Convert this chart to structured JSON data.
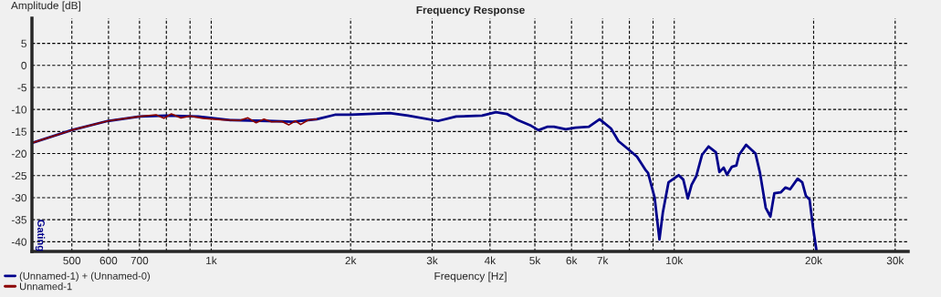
{
  "chart_data": {
    "type": "line",
    "title": "Frequency Response",
    "xlabel": "Frequency [Hz]",
    "ylabel": "Amplitude [dB]",
    "log": "x",
    "xlim": [
      410,
      32000
    ],
    "ylim": [
      -42.2,
      10.7
    ],
    "xticks": [
      500,
      600,
      700,
      {
        "value": 800,
        "label": null
      },
      {
        "value": 900,
        "label": null
      },
      {
        "value": 1000,
        "label": "1k"
      },
      {
        "value": 2000,
        "label": "2k"
      },
      {
        "value": 3000,
        "label": "3k"
      },
      {
        "value": 4000,
        "label": "4k"
      },
      {
        "value": 5000,
        "label": "5k"
      },
      {
        "value": 6000,
        "label": "6k"
      },
      {
        "value": 7000,
        "label": "7k"
      },
      {
        "value": 8000,
        "label": null
      },
      {
        "value": 9000,
        "label": null
      },
      {
        "value": 10000,
        "label": "10k"
      },
      {
        "value": 20000,
        "label": "20k"
      },
      {
        "value": 30000,
        "label": "30k"
      }
    ],
    "yticks": [
      5,
      0,
      -5,
      -10,
      -15,
      -20,
      -25,
      -30,
      -35,
      -40
    ],
    "grid": true,
    "legend": "bottom left",
    "line_style": "solid",
    "marker": "none",
    "annotations": [
      "Gating"
    ],
    "series": [
      {
        "name": "(Unnamed-1) + (Unnamed-0)",
        "color": "#00008b",
        "x": [
          410,
          499,
          598,
          700,
          800,
          937,
          1100,
          1323,
          1500,
          1690,
          1850,
          2000,
          2430,
          2660,
          3090,
          3380,
          3846,
          4120,
          4350,
          4590,
          4910,
          5090,
          5330,
          5500,
          5830,
          6120,
          6540,
          6900,
          7300,
          7580,
          7890,
          8310,
          8680,
          8780,
          9070,
          9290,
          9450,
          9720,
          10220,
          10460,
          10700,
          10900,
          11160,
          11480,
          11860,
          12300,
          12520,
          12790,
          13000,
          13320,
          13620,
          13800,
          14300,
          14980,
          15320,
          15760,
          16130,
          16450,
          16980,
          17390,
          17790,
          18470,
          18900,
          19250,
          19600,
          19950,
          20280
        ],
        "values": [
          -17.6,
          -14.7,
          -12.6,
          -11.6,
          -11.4,
          -11.6,
          -12.4,
          -12.6,
          -12.8,
          -12.2,
          -11.2,
          -11.2,
          -10.8,
          -11.4,
          -12.6,
          -11.6,
          -11.4,
          -10.6,
          -11.0,
          -12.4,
          -13.7,
          -14.7,
          -13.9,
          -13.9,
          -14.5,
          -14.1,
          -13.9,
          -12.2,
          -14.3,
          -17.2,
          -18.7,
          -20.7,
          -23.8,
          -24.4,
          -30.0,
          -39.5,
          -33.3,
          -26.5,
          -24.9,
          -25.9,
          -30.2,
          -27.1,
          -25.1,
          -20.3,
          -18.4,
          -19.7,
          -24.2,
          -23.2,
          -24.8,
          -23.0,
          -22.7,
          -20.3,
          -18.0,
          -20.0,
          -24.4,
          -32.3,
          -34.3,
          -29.0,
          -28.8,
          -27.7,
          -28.1,
          -25.7,
          -26.5,
          -29.6,
          -30.4,
          -36.9,
          -41.9
        ]
      },
      {
        "name": "Unnamed-1",
        "color": "#8b0000",
        "x": [
          410,
          499,
          598,
          700,
          760,
          790,
          820,
          860,
          900,
          960,
          1050,
          1150,
          1200,
          1250,
          1300,
          1350,
          1420,
          1470,
          1520,
          1560,
          1620,
          1690
        ],
        "values": [
          -17.6,
          -14.7,
          -12.6,
          -11.6,
          -11.2,
          -12.0,
          -11.0,
          -11.9,
          -11.5,
          -12.0,
          -12.3,
          -12.5,
          -11.9,
          -13.0,
          -12.2,
          -12.8,
          -12.7,
          -13.5,
          -12.6,
          -13.4,
          -12.4,
          -12.2
        ]
      }
    ]
  }
}
